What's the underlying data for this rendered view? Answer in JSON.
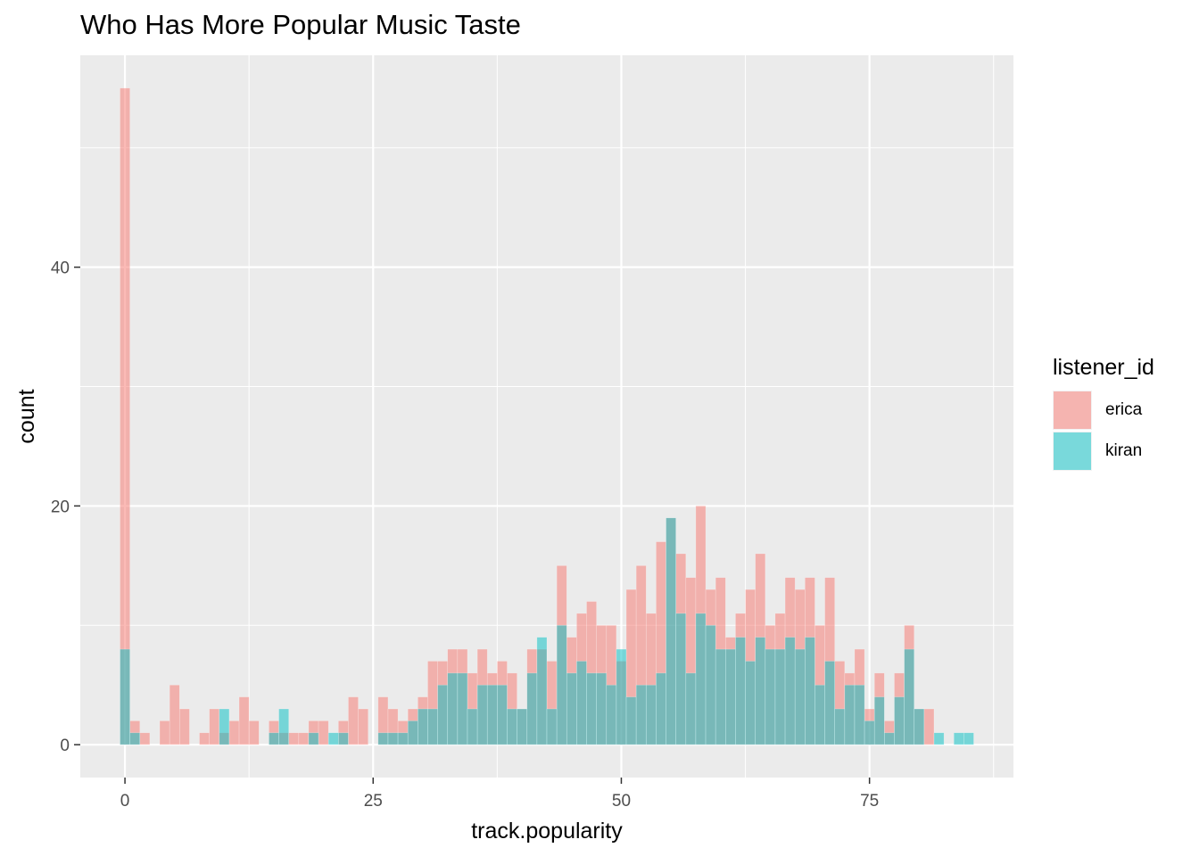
{
  "title": "Who Has More Popular Music Taste",
  "legend": {
    "title": "listener_id",
    "placement": "right",
    "items": [
      {
        "label": "erica",
        "color": "#F8766D",
        "alpha": 0.5
      },
      {
        "label": "kiran",
        "color": "#00BFC4",
        "alpha": 0.5
      }
    ]
  },
  "chart_data": {
    "type": "bar",
    "subtype": "histogram",
    "position": "identity",
    "title": "Who Has More Popular Music Taste",
    "xlabel": "track.popularity",
    "ylabel": "count",
    "xlim": [
      -4.5,
      89.5
    ],
    "ylim": [
      -2.75,
      57.75
    ],
    "xticks": [
      0,
      25,
      50,
      75
    ],
    "xtick_labels": [
      "0",
      "25",
      "50",
      "75"
    ],
    "yticks": [
      0,
      20,
      40
    ],
    "ytick_labels": [
      "0",
      "20",
      "40"
    ],
    "grid": true,
    "x": [
      0,
      1,
      2,
      3,
      4,
      5,
      6,
      7,
      8,
      9,
      10,
      11,
      12,
      13,
      14,
      15,
      16,
      17,
      18,
      19,
      20,
      21,
      22,
      23,
      24,
      25,
      26,
      27,
      28,
      29,
      30,
      31,
      32,
      33,
      34,
      35,
      36,
      37,
      38,
      39,
      40,
      41,
      42,
      43,
      44,
      45,
      46,
      47,
      48,
      49,
      50,
      51,
      52,
      53,
      54,
      55,
      56,
      57,
      58,
      59,
      60,
      61,
      62,
      63,
      64,
      65,
      66,
      67,
      68,
      69,
      70,
      71,
      72,
      73,
      74,
      75,
      76,
      77,
      78,
      79,
      80,
      81,
      82,
      83,
      84,
      85
    ],
    "series": [
      {
        "name": "erica",
        "values": [
          55,
          2,
          1,
          0,
          2,
          5,
          3,
          0,
          1,
          3,
          1,
          2,
          4,
          2,
          0,
          2,
          1,
          1,
          1,
          2,
          2,
          0,
          2,
          4,
          3,
          0,
          4,
          3,
          2,
          3,
          4,
          7,
          7,
          8,
          8,
          6,
          8,
          6,
          7,
          6,
          3,
          8,
          8,
          7,
          15,
          9,
          11,
          12,
          10,
          10,
          7,
          13,
          15,
          11,
          17,
          19,
          16,
          14,
          20,
          13,
          14,
          9,
          11,
          13,
          16,
          10,
          11,
          14,
          13,
          14,
          10,
          14,
          7,
          6,
          8,
          3,
          6,
          2,
          6,
          10,
          3,
          3,
          0,
          0,
          0,
          0
        ]
      },
      {
        "name": "kiran",
        "values": [
          8,
          1,
          0,
          0,
          0,
          0,
          0,
          0,
          0,
          0,
          3,
          0,
          0,
          0,
          0,
          1,
          3,
          0,
          0,
          1,
          0,
          1,
          1,
          0,
          0,
          0,
          1,
          1,
          1,
          2,
          3,
          3,
          5,
          6,
          6,
          3,
          5,
          5,
          5,
          3,
          3,
          6,
          9,
          3,
          10,
          6,
          7,
          6,
          6,
          5,
          8,
          4,
          5,
          5,
          6,
          19,
          11,
          6,
          11,
          10,
          8,
          8,
          9,
          7,
          9,
          8,
          8,
          9,
          8,
          9,
          5,
          7,
          3,
          5,
          5,
          2,
          4,
          1,
          4,
          8,
          3,
          0,
          1,
          0,
          1,
          1
        ]
      }
    ]
  }
}
